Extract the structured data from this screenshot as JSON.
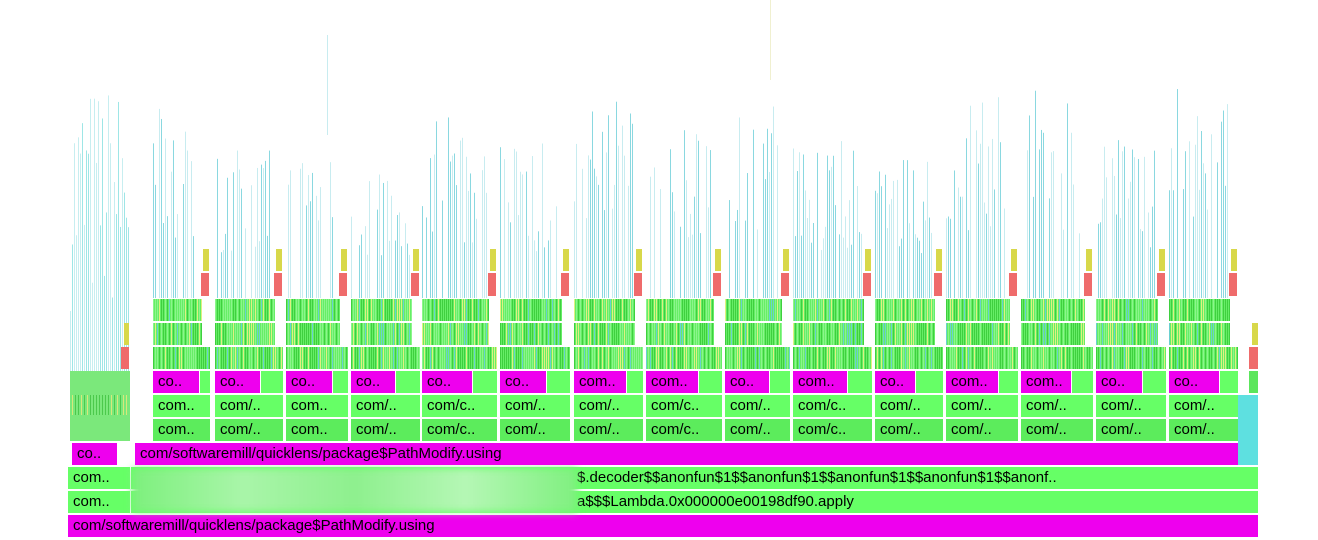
{
  "bottom": "com/softwaremill/quicklens/package$PathModify.using",
  "level2": [
    "com..",
    "a$$$Lambda.0x000000e00198df90.apply"
  ],
  "level3": [
    "com..",
    "$.decoder$$anonfun$1$$anonfun$1$$anonfun$1$$anonfun$1$$anonf.."
  ],
  "level4": [
    "co..",
    "com/softwaremill/quicklens/package$PathModify.using"
  ],
  "level5": [
    "com..",
    "com/..",
    "com..",
    "com/..",
    "com/c..",
    "com/..",
    "com/..",
    "com/c..",
    "com/..",
    "com/c..",
    "com/..",
    "com/..",
    "com/..",
    "com/..",
    "com/.."
  ],
  "level6": [
    "com..",
    "com/..",
    "com..",
    "com/..",
    "com/c..",
    "com/..",
    "com/..",
    "com/c..",
    "com/..",
    "com/c..",
    "com/..",
    "com/..",
    "com/..",
    "com/..",
    "com/.."
  ],
  "level7": [
    "co..",
    "co..",
    "co..",
    "co..",
    "co..",
    "co..",
    "com..",
    "com..",
    "co..",
    "com..",
    "co..",
    "com..",
    "com..",
    "co..",
    "co.."
  ]
}
